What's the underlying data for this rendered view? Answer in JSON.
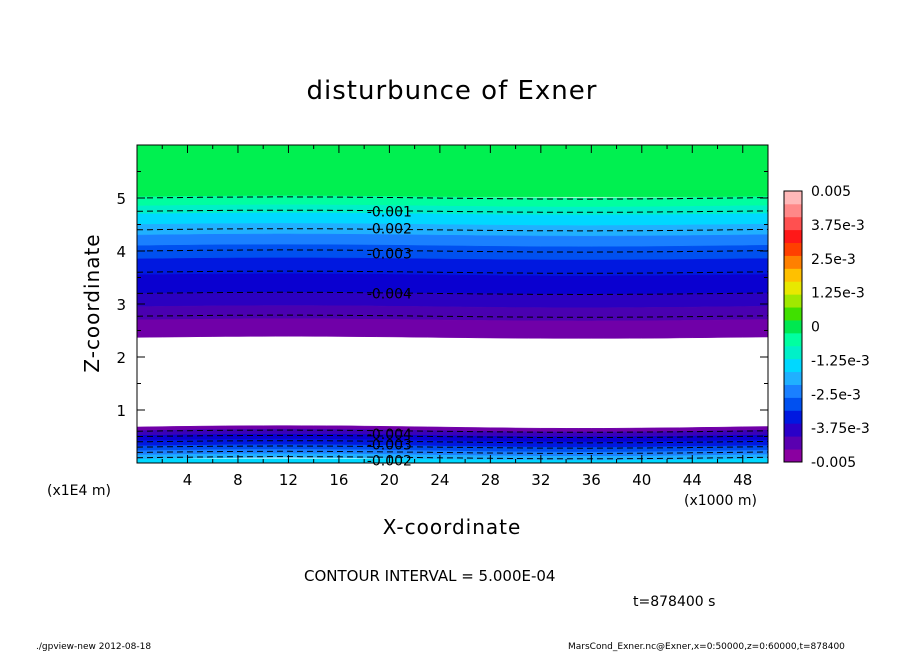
{
  "chart_data": {
    "type": "heatmap",
    "title": "disturbunce of Exner",
    "xlabel": "X-coordinate",
    "ylabel": "Z-coordinate",
    "x_unit": "(x1000 m)",
    "y_unit": "(x1E4 m)",
    "xlim": [
      0,
      50
    ],
    "ylim": [
      0,
      6
    ],
    "x_ticks": [
      4,
      8,
      12,
      16,
      20,
      24,
      28,
      32,
      36,
      40,
      44,
      48
    ],
    "y_ticks": [
      1,
      2,
      3,
      4,
      5
    ],
    "x_tick_labels": [
      "4",
      "8",
      "12",
      "16",
      "20",
      "24",
      "28",
      "32",
      "36",
      "40",
      "44",
      "48"
    ],
    "y_tick_labels": [
      "1",
      "2",
      "3",
      "4",
      "5"
    ],
    "colorbar": {
      "min": -0.005,
      "max": 0.005,
      "tick_labels": [
        "0.005",
        "3.75e-3",
        "2.5e-3",
        "1.25e-3",
        "0",
        "-1.25e-3",
        "-2.5e-3",
        "-3.75e-3",
        "-0.005"
      ],
      "tick_values": [
        0.005,
        0.00375,
        0.0025,
        0.00125,
        0,
        -0.00125,
        -0.0025,
        -0.00375,
        -0.005
      ],
      "colors": [
        "#8a00a0",
        "#5a00b0",
        "#2a00c8",
        "#0018e0",
        "#0050f0",
        "#1a80ff",
        "#20b0ff",
        "#00d8ff",
        "#00f0c8",
        "#00ffa0",
        "#00e850",
        "#40e000",
        "#a0e800",
        "#e8e800",
        "#ffc000",
        "#ff8000",
        "#ff4000",
        "#ff1818",
        "#ff5050",
        "#ff8888",
        "#ffb8b8"
      ]
    },
    "contour_interval": 0.0005,
    "contour_lines_z": [
      0.1,
      0.2,
      0.3,
      0.4,
      0.5,
      0.6,
      2.77,
      3.2,
      3.6,
      4.0,
      4.4,
      4.75,
      5.0
    ],
    "contour_labels": [
      {
        "text": "-0.001",
        "x": 20,
        "z": 4.75
      },
      {
        "text": "-0.002",
        "x": 20,
        "z": 4.42
      },
      {
        "text": "-0.003",
        "x": 20,
        "z": 3.95
      },
      {
        "text": "-0.004",
        "x": 20,
        "z": 3.2
      },
      {
        "text": "-0.004",
        "x": 20,
        "z": 0.55
      },
      {
        "text": "-0.003",
        "x": 20,
        "z": 0.35
      },
      {
        "text": "-0.002",
        "x": 20,
        "z": 0.05
      }
    ],
    "bands_upper": [
      {
        "z0": 5.02,
        "z1": 6.0,
        "color": "#00f050"
      },
      {
        "z0": 4.85,
        "z1": 5.02,
        "color": "#00ffa0"
      },
      {
        "z0": 4.7,
        "z1": 4.85,
        "color": "#00f0c8"
      },
      {
        "z0": 4.5,
        "z1": 4.7,
        "color": "#00d8ff"
      },
      {
        "z0": 4.3,
        "z1": 4.5,
        "color": "#20b0ff"
      },
      {
        "z0": 4.1,
        "z1": 4.3,
        "color": "#1a80ff"
      },
      {
        "z0": 3.85,
        "z1": 4.1,
        "color": "#0050f0"
      },
      {
        "z0": 3.55,
        "z1": 3.85,
        "color": "#0018e0"
      },
      {
        "z0": 3.2,
        "z1": 3.55,
        "color": "#0a00d0"
      },
      {
        "z0": 2.95,
        "z1": 3.2,
        "color": "#2a00c0"
      },
      {
        "z0": 2.7,
        "z1": 2.95,
        "color": "#4a00b0"
      },
      {
        "z0": 2.37,
        "z1": 2.7,
        "color": "#7000a8"
      }
    ],
    "bands_lower": [
      {
        "z0": 0.0,
        "z1": 0.08,
        "color": "#00d8ff"
      },
      {
        "z0": 0.08,
        "z1": 0.16,
        "color": "#20b0ff"
      },
      {
        "z0": 0.16,
        "z1": 0.24,
        "color": "#1a80ff"
      },
      {
        "z0": 0.24,
        "z1": 0.33,
        "color": "#0050f0"
      },
      {
        "z0": 0.33,
        "z1": 0.43,
        "color": "#0018e0"
      },
      {
        "z0": 0.43,
        "z1": 0.53,
        "color": "#0a00d0"
      },
      {
        "z0": 0.53,
        "z1": 0.62,
        "color": "#3a00b8"
      },
      {
        "z0": 0.62,
        "z1": 0.68,
        "color": "#7000a8"
      }
    ]
  },
  "texts": {
    "title": "disturbunce of Exner",
    "xlabel": "X-coordinate",
    "ylabel": "Z-coordinate",
    "x_unit": "(x1000 m)",
    "y_unit": "(x1E4 m)",
    "contour_interval": "CONTOUR INTERVAL = 5.000E-04",
    "time": "t=878400 s",
    "footer_left": "./gpview-new   2012-08-18",
    "footer_right": "MarsCond_Exner.nc@Exner,x=0:50000,z=0:60000,t=878400"
  }
}
